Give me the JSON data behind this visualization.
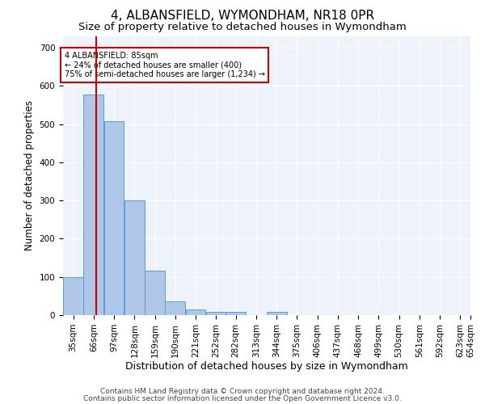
{
  "title": "4, ALBANSFIELD, WYMONDHAM, NR18 0PR",
  "subtitle": "Size of property relative to detached houses in Wymondham",
  "xlabel": "Distribution of detached houses by size in Wymondham",
  "ylabel": "Number of detached properties",
  "footnote1": "Contains HM Land Registry data © Crown copyright and database right 2024.",
  "footnote2": "Contains public sector information licensed under the Open Government Licence v3.0.",
  "bar_color": "#aec6e8",
  "bar_edge_color": "#5b9bd5",
  "background_color": "#eef3fb",
  "grid_color": "#ffffff",
  "annotation_line_color": "#cc0000",
  "annotation_box_color": "#cc0000",
  "annotation_text": "4 ALBANSFIELD: 85sqm\n← 24% of detached houses are smaller (400)\n75% of semi-detached houses are larger (1,234) →",
  "property_size": 85,
  "bin_edges": [
    35,
    66,
    97,
    128,
    159,
    190,
    221,
    252,
    282,
    313,
    344,
    375,
    406,
    437,
    468,
    499,
    530,
    561,
    592,
    623,
    654
  ],
  "bin_counts": [
    100,
    578,
    507,
    300,
    117,
    35,
    15,
    8,
    8,
    0,
    8,
    0,
    0,
    0,
    0,
    0,
    0,
    0,
    0,
    0
  ],
  "ylim": [
    0,
    730
  ],
  "yticks": [
    0,
    100,
    200,
    300,
    400,
    500,
    600,
    700
  ],
  "title_fontsize": 11,
  "subtitle_fontsize": 9.5,
  "xlabel_fontsize": 9,
  "ylabel_fontsize": 8.5,
  "tick_fontsize": 7.5,
  "footnote_fontsize": 6.5
}
